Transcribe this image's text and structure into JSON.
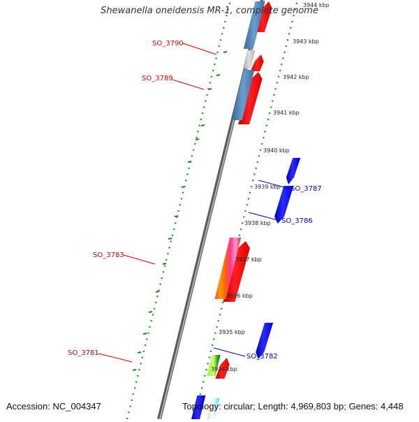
{
  "title": "Shewanella oneidensis MR-1, complete genome",
  "footer": {
    "accession": "Accession: NC_004347",
    "summary": "Topology: circular; Length: 4,969,803 bp; Genes: 4,448"
  },
  "ticks": [
    "3934 kbp",
    "3935 kbp",
    "3936 kbp",
    "3937 kbp",
    "3938 kbp",
    "3939 kbp",
    "3940 kbp",
    "3941 kbp",
    "3942 kbp",
    "3943 kbp",
    "3944 kbp"
  ],
  "gene_labels": [
    {
      "text": "SO_3790",
      "strand": "forward",
      "color": "#dd0000"
    },
    {
      "text": "SO_3789",
      "strand": "forward",
      "color": "#dd0000"
    },
    {
      "text": "SO_3787",
      "strand": "reverse",
      "color": "#0000cc"
    },
    {
      "text": "SO_3786",
      "strand": "reverse",
      "color": "#0000cc"
    },
    {
      "text": "SO_3783",
      "strand": "forward",
      "color": "#dd0000"
    },
    {
      "text": "SO_3781",
      "strand": "forward",
      "color": "#dd0000"
    },
    {
      "text": "SO_3782",
      "strand": "reverse",
      "color": "#0000cc"
    }
  ],
  "colors": {
    "forward_gene": "#ff0000",
    "reverse_gene": "#0000ff",
    "backbone": "#808080",
    "dotted_ring": "#1a8a1a",
    "cog_blue": "#4a7fb5",
    "cog_gray": "#bcbcbc"
  }
}
